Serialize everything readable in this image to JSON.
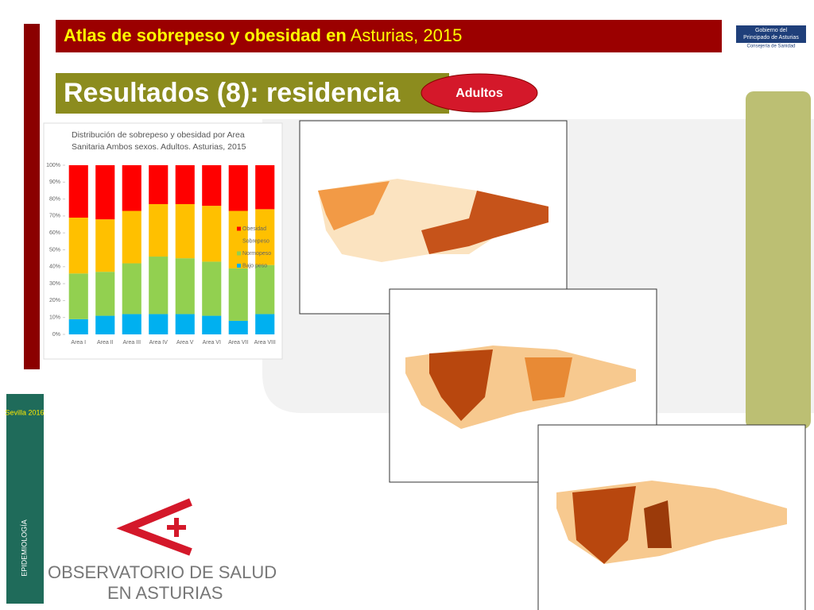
{
  "header": {
    "title_bold": "Atlas de sobrepeso y obesidad en",
    "title_rest": "Asturias, 2015"
  },
  "section_title": "Resultados (8): residencia",
  "badge": "Adultos",
  "chart_data": {
    "type": "stacked-bar",
    "title": "Distribución de sobrepeso y obesidad por Area Sanitaria Ambos sexos. Adultos. Asturias, 2015",
    "categories": [
      "Area I",
      "Area II",
      "Area III",
      "Area IV",
      "Area V",
      "Area VI",
      "Area VII",
      "Area VIII"
    ],
    "series": [
      {
        "name": "Obesidad",
        "color": "#ff0000",
        "values": [
          31,
          32,
          27,
          23,
          23,
          24,
          27,
          26
        ]
      },
      {
        "name": "Sobrepeso",
        "color": "#ffc000",
        "values": [
          33,
          31,
          31,
          31,
          32,
          33,
          34,
          33
        ]
      },
      {
        "name": "Normopeso",
        "color": "#92d050",
        "values": [
          27,
          26,
          30,
          34,
          33,
          32,
          31,
          29
        ]
      },
      {
        "name": "Bajo peso",
        "color": "#00b0f0",
        "values": [
          9,
          11,
          12,
          12,
          12,
          11,
          8,
          12
        ]
      }
    ],
    "ylim": [
      0,
      100
    ],
    "yticks": [
      {
        "value": 0,
        "label": "0%"
      },
      {
        "value": 10,
        "label": "10%"
      },
      {
        "value": 20,
        "label": "20%"
      },
      {
        "value": 30,
        "label": "30%"
      },
      {
        "value": 40,
        "label": "40%"
      },
      {
        "value": 50,
        "label": "50%"
      },
      {
        "value": 60,
        "label": "60%"
      },
      {
        "value": 70,
        "label": "70%"
      },
      {
        "value": 80,
        "label": "80%"
      },
      {
        "value": 90,
        "label": "90%"
      },
      {
        "value": 100,
        "label": "100%"
      }
    ],
    "grid": false
  },
  "logos": {
    "gov_line1": "Gobierno del",
    "gov_line2": "Principado de Asturias",
    "gov_line3": "Consejería de Sanidad",
    "obs_line1": "OBSERVATORIO DE SALUD",
    "obs_line2": "EN ASTURIAS",
    "side_top": "Sevilla 2016",
    "side_bottom": "EPIDEMIOLOGÍA"
  }
}
